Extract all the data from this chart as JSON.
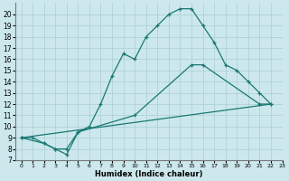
{
  "xlabel": "Humidex (Indice chaleur)",
  "bg_color": "#cce8ec",
  "line_color": "#1a7872",
  "grid_color": "#aacdd4",
  "curve1_x": [
    0,
    1,
    2,
    3,
    4,
    5,
    6,
    7,
    8,
    9,
    10,
    11,
    12,
    13,
    14,
    15,
    16,
    17,
    18,
    19,
    20,
    21,
    22
  ],
  "curve1_y": [
    9,
    9,
    8.5,
    8,
    7.5,
    9.5,
    10,
    12,
    14.5,
    16.5,
    16,
    18,
    19,
    20,
    20.5,
    20.5,
    19,
    17.5,
    15.5,
    15,
    14,
    13,
    12
  ],
  "curve2_x": [
    0,
    2,
    3,
    4,
    5,
    10,
    15,
    16,
    21,
    22
  ],
  "curve2_y": [
    9,
    8.5,
    8,
    8,
    9.5,
    11,
    15.5,
    15.5,
    12,
    12
  ],
  "curve3_x": [
    0,
    22
  ],
  "curve3_y": [
    9,
    12
  ],
  "xlim": [
    -0.5,
    23
  ],
  "ylim": [
    7,
    21
  ],
  "xticks": [
    0,
    1,
    2,
    3,
    4,
    5,
    6,
    7,
    8,
    9,
    10,
    11,
    12,
    13,
    14,
    15,
    16,
    17,
    18,
    19,
    20,
    21,
    22,
    23
  ],
  "yticks": [
    7,
    8,
    9,
    10,
    11,
    12,
    13,
    14,
    15,
    16,
    17,
    18,
    19,
    20
  ]
}
